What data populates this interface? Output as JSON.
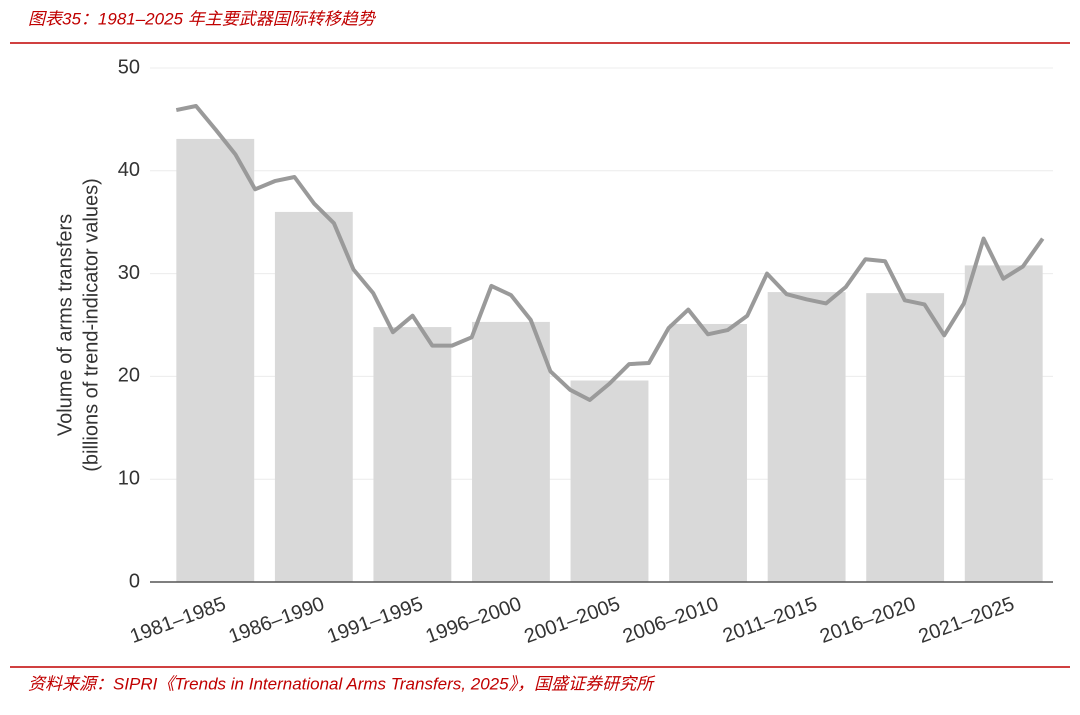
{
  "header": {
    "title": "图表35：1981–2025 年主要武器国际转移趋势"
  },
  "chart_data": {
    "type": "bar",
    "y_label": [
      "Volume of arms transfers",
      "(billions of trend-indicator values)"
    ],
    "categories": [
      "1981–1985",
      "1986–1990",
      "1991–1995",
      "1996–2000",
      "2001–2005",
      "2006–2010",
      "2011–2015",
      "2016–2020",
      "2021–2025"
    ],
    "values": [
      43.1,
      36.0,
      24.8,
      25.3,
      19.6,
      25.1,
      28.2,
      28.1,
      30.8
    ],
    "color": "#d9d9d9",
    "ylim": [
      0,
      50
    ],
    "yticks": [
      0,
      10,
      20,
      30,
      40,
      50
    ],
    "grid": true,
    "line": {
      "type": "line",
      "color": "#9a9a9a",
      "x": [
        1981,
        1982,
        1983,
        1984,
        1985,
        1986,
        1987,
        1988,
        1989,
        1990,
        1991,
        1992,
        1993,
        1994,
        1995,
        1996,
        1997,
        1998,
        1999,
        2000,
        2001,
        2002,
        2003,
        2004,
        2005,
        2006,
        2007,
        2008,
        2009,
        2010,
        2011,
        2012,
        2013,
        2014,
        2015,
        2016,
        2017,
        2018,
        2019,
        2020,
        2021,
        2022,
        2023,
        2024,
        2025
      ],
      "values": [
        45.9,
        46.3,
        44.0,
        41.6,
        38.2,
        39.0,
        39.4,
        36.8,
        34.9,
        30.4,
        28.1,
        24.3,
        25.9,
        23.0,
        23.0,
        23.8,
        28.8,
        27.9,
        25.5,
        20.5,
        18.7,
        17.7,
        19.3,
        21.2,
        21.3,
        24.7,
        26.5,
        24.1,
        24.5,
        25.9,
        30.0,
        28.0,
        27.5,
        27.1,
        28.7,
        31.4,
        31.2,
        27.4,
        27.0,
        24.0,
        27.1,
        33.4,
        29.5,
        30.7,
        33.4
      ]
    }
  },
  "footer": {
    "source": "资料来源：SIPRI《Trends in International Arms Transfers, 2025》，国盛证券研究所"
  }
}
